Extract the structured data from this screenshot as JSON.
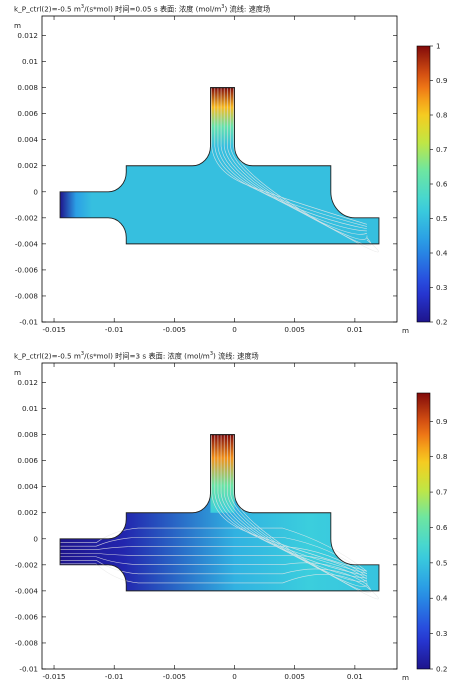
{
  "chart_data": [
    {
      "type": "heatmap",
      "title_prefix": "k_P_ctrl(2)=-0.5 m",
      "title_sup": "3",
      "title_mid": "/(s*mol) 时间=0.05 s  表面: 浓度 (mol/m",
      "title_sup2": "3",
      "title_suffix": ")  流线: 速度场",
      "xlabel": "m",
      "ylabel": "m",
      "xlim": [
        -0.016,
        0.0135
      ],
      "ylim": [
        -0.01,
        0.0135
      ],
      "x_ticks": [
        "-0.015",
        "-0.01",
        "-0.005",
        "0",
        "0.005",
        "0.01"
      ],
      "x_tick_values": [
        -0.015,
        -0.01,
        -0.005,
        0,
        0.005,
        0.01
      ],
      "y_ticks": [
        "0.012",
        "0.01",
        "0.008",
        "0.006",
        "0.004",
        "0.002",
        "0",
        "-0.002",
        "-0.004",
        "-0.006",
        "-0.008",
        "-0.01"
      ],
      "y_tick_values": [
        0.012,
        0.01,
        0.008,
        0.006,
        0.004,
        0.002,
        0,
        -0.002,
        -0.004,
        -0.006,
        -0.008,
        -0.01
      ],
      "colorbar_range": [
        0.2,
        1.0
      ],
      "colorbar_ticks": [
        "1",
        "0.9",
        "0.8",
        "0.7",
        "0.6",
        "0.5",
        "0.4",
        "0.3",
        "0.2"
      ],
      "colorbar_tick_values": [
        1.0,
        0.9,
        0.8,
        0.7,
        0.6,
        0.5,
        0.4,
        0.3,
        0.2
      ],
      "concentration": {
        "inlet": 0.2,
        "bulk": 0.5,
        "top_channel": 1.0
      }
    },
    {
      "type": "heatmap",
      "title_prefix": "k_P_ctrl(2)=-0.5 m",
      "title_sup": "3",
      "title_mid": "/(s*mol) 时间=3 s  表面: 浓度 (mol/m",
      "title_sup2": "3",
      "title_suffix": ")  流线: 速度场",
      "xlabel": "m",
      "ylabel": "m",
      "xlim": [
        -0.016,
        0.0135
      ],
      "ylim": [
        -0.01,
        0.0135
      ],
      "x_ticks": [
        "-0.015",
        "-0.01",
        "-0.005",
        "0",
        "0.005",
        "0.01"
      ],
      "x_tick_values": [
        -0.015,
        -0.01,
        -0.005,
        0,
        0.005,
        0.01
      ],
      "y_ticks": [
        "0.012",
        "0.01",
        "0.008",
        "0.006",
        "0.004",
        "0.002",
        "0",
        "-0.002",
        "-0.004",
        "-0.006",
        "-0.008",
        "-0.01"
      ],
      "y_tick_values": [
        0.012,
        0.01,
        0.008,
        0.006,
        0.004,
        0.002,
        0,
        -0.002,
        -0.004,
        -0.006,
        -0.008,
        -0.01
      ],
      "colorbar_range": [
        0.2,
        0.98
      ],
      "colorbar_ticks": [
        "0.9",
        "0.8",
        "0.7",
        "0.6",
        "0.5",
        "0.4",
        "0.3",
        "0.2"
      ],
      "colorbar_tick_values": [
        0.9,
        0.8,
        0.7,
        0.6,
        0.5,
        0.4,
        0.3,
        0.2
      ],
      "concentration": {
        "inlet": 0.2,
        "bulk_left": 0.3,
        "bulk_right": 0.52,
        "top_channel": 0.98
      }
    }
  ]
}
